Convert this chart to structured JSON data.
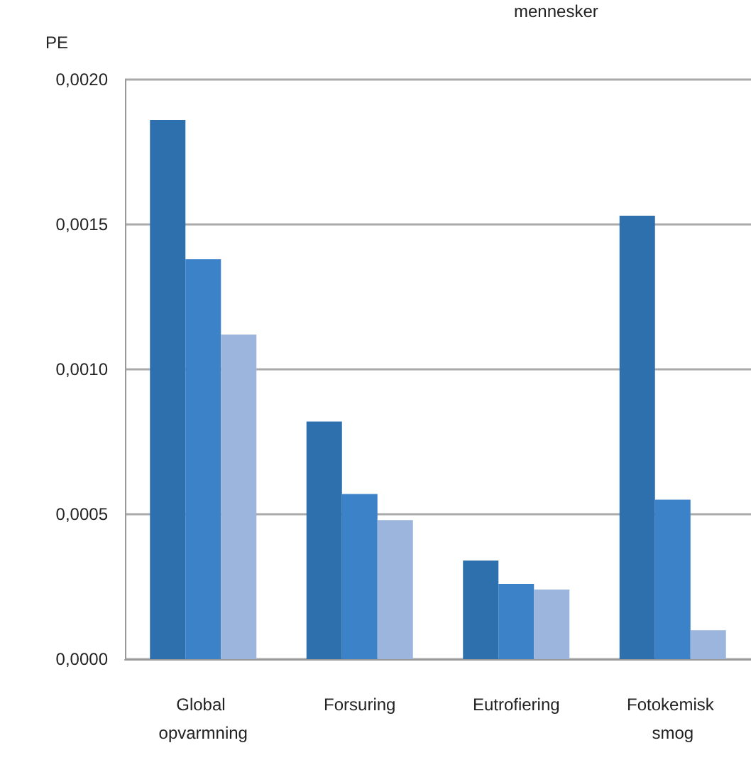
{
  "chart_data": {
    "type": "bar",
    "ylabel": "PE",
    "annotations": [
      "mennesker"
    ],
    "categories": [
      "Global opvarmning",
      "Forsuring",
      "Eutrofiering",
      "Fotokemisk smog"
    ],
    "series": [
      {
        "color": "#2e6fad",
        "values": [
          0.00186,
          0.00082,
          0.00034,
          0.00153
        ]
      },
      {
        "color": "#3b82c8",
        "values": [
          0.00138,
          0.00057,
          0.00026,
          0.00055
        ]
      },
      {
        "color": "#9bb5dc",
        "values": [
          0.00112,
          0.00048,
          0.00024,
          0.0001
        ]
      }
    ],
    "ylim": [
      0,
      0.002
    ],
    "yticks": [
      {
        "value": 0,
        "label": "0,0000"
      },
      {
        "value": 0.0005,
        "label": "0,0005"
      },
      {
        "value": 0.001,
        "label": "0,0010"
      },
      {
        "value": 0.0015,
        "label": "0,0015"
      },
      {
        "value": 0.002,
        "label": "0,0020"
      }
    ],
    "grid": "y"
  }
}
